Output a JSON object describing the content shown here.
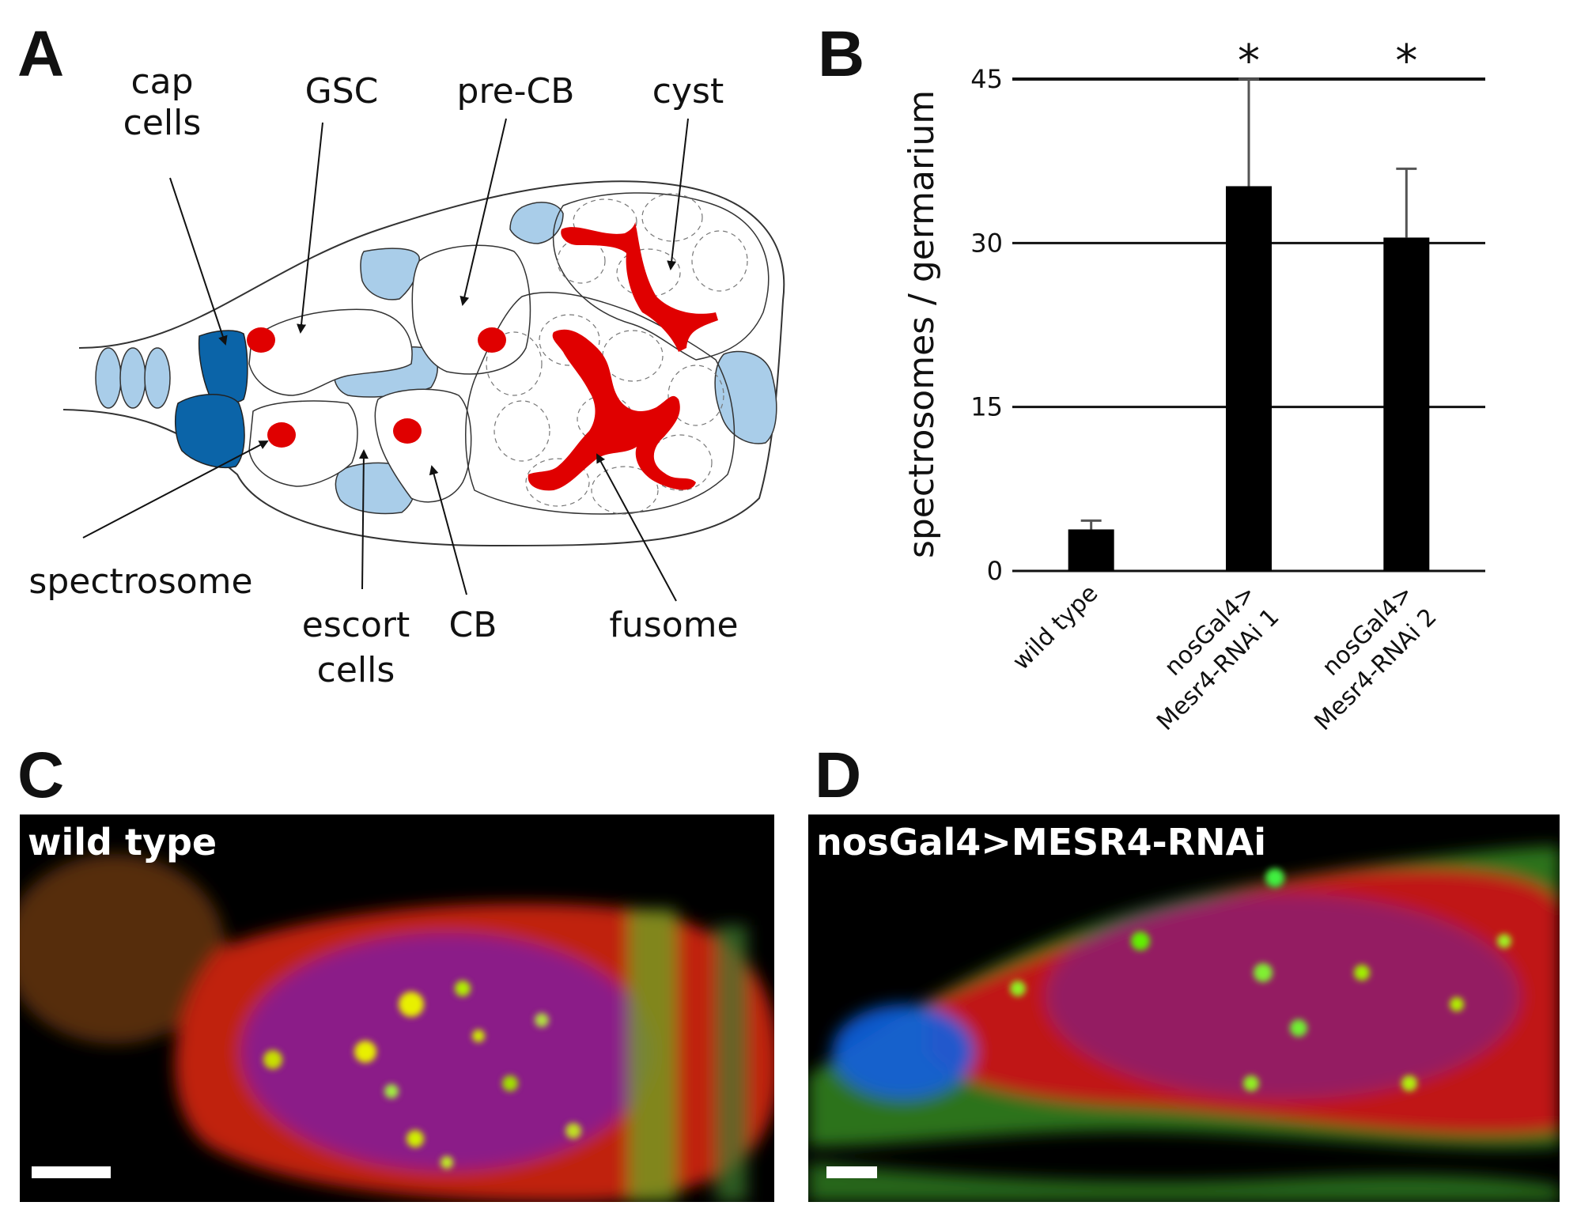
{
  "figure": {
    "panel_letters": [
      "A",
      "B",
      "C",
      "D"
    ]
  },
  "panel_a": {
    "labels": {
      "cap_cells_line1": "cap",
      "cap_cells_line2": "cells",
      "gsc": "GSC",
      "pre_cb": "pre-CB",
      "cyst": "cyst",
      "spectrosome": "spectrosome",
      "escort_cells_line1": "escort",
      "escort_cells_line2": "cells",
      "cb": "CB",
      "fusome": "fusome"
    },
    "colors": {
      "light_blue_cells": "#a9cde9",
      "dark_blue_cells": "#0b64a8",
      "red_structures": "#e00000",
      "outline": "#333333"
    }
  },
  "chart_data": {
    "type": "bar",
    "categories": [
      "wild type",
      "nosGal4>\nMesr4-RNAi 1",
      "nosGal4>\nMesr4-RNAi 2"
    ],
    "values": [
      3.8,
      35.2,
      30.5
    ],
    "error_upper": [
      4.6,
      45.0,
      36.8
    ],
    "significance": [
      "",
      "*",
      "*"
    ],
    "xlabel": "",
    "ylabel": "spectrosomes / germarium",
    "ylim": [
      0,
      45
    ],
    "yticks": [
      0,
      15,
      30,
      45
    ],
    "grid": true,
    "bar_color": "#000000"
  },
  "panel_c": {
    "label": "wild type"
  },
  "panel_d": {
    "label": "nosGal4>MESR4-RNAi"
  }
}
